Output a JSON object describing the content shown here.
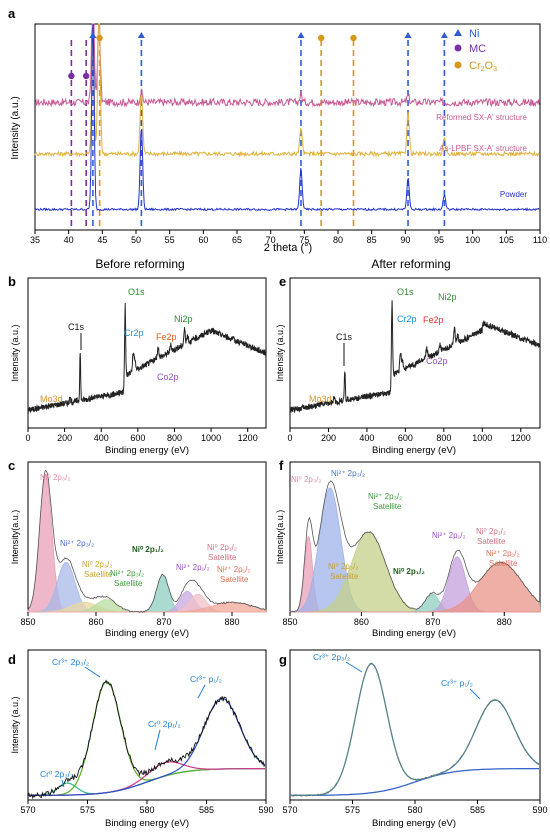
{
  "chart_data": [
    {
      "panel": "a",
      "type": "line",
      "xlabel": "2 theta (°)",
      "ylabel": "Intensity (a.u.)",
      "xlim": [
        35,
        110
      ],
      "xticks": [
        35,
        40,
        45,
        50,
        55,
        60,
        65,
        70,
        75,
        80,
        85,
        90,
        95,
        100,
        105,
        110
      ],
      "legend": [
        {
          "label": "Ni",
          "marker": "triangle",
          "color": "#2f5bd6"
        },
        {
          "label": "MC",
          "marker": "circle",
          "color": "#7b2fa6"
        },
        {
          "label": "Cr2O3",
          "marker": "circle",
          "color": "#d9961d"
        }
      ],
      "markers": {
        "Ni": [
          43.6,
          50.8,
          74.5,
          90.4,
          95.8
        ],
        "MC": [
          40.4,
          42.6
        ],
        "Cr2O3": [
          44.6,
          77.5,
          82.3
        ]
      },
      "series": [
        {
          "name": "Reformed SX-A' structure",
          "color": "#c85a93",
          "baseline": 0.62,
          "peaks": [
            [
              43.6,
              0.6
            ],
            [
              44.5,
              0.45
            ],
            [
              50.8,
              0.05
            ],
            [
              74.5,
              0.04
            ],
            [
              90.4,
              0.03
            ]
          ]
        },
        {
          "name": "As-LPBF SX-A' structure",
          "color": "#e0b23c",
          "baseline": 0.37,
          "peaks": [
            [
              43.6,
              0.55
            ],
            [
              44.5,
              0.75
            ],
            [
              50.8,
              0.3
            ],
            [
              74.5,
              0.12
            ],
            [
              90.4,
              0.2
            ],
            [
              95.8,
              0.07
            ]
          ]
        },
        {
          "name": "Powder",
          "color": "#2233cc",
          "baseline": 0.1,
          "peaks": [
            [
              43.6,
              0.92
            ],
            [
              50.8,
              0.4
            ],
            [
              74.5,
              0.2
            ],
            [
              90.4,
              0.15
            ],
            [
              95.8,
              0.07
            ]
          ]
        }
      ]
    },
    {
      "panel": "b",
      "title": "Before reforming",
      "type": "line",
      "xlabel": "Binding energy (eV)",
      "ylabel": "Intensity (a.u.)",
      "xlim": [
        0,
        1300
      ],
      "xticks": [
        0,
        200,
        400,
        600,
        800,
        1000,
        1200
      ],
      "annotations": [
        {
          "text": "O1s",
          "x": 530,
          "color": "#2e8b2e"
        },
        {
          "text": "C1s",
          "x": 285,
          "color": "#111111"
        },
        {
          "text": "Cr2p",
          "x": 575,
          "color": "#1f8fd6"
        },
        {
          "text": "Ni2p",
          "x": 855,
          "color": "#2e8b2e"
        },
        {
          "text": "Fe2p",
          "x": 711,
          "color": "#e05a1a"
        },
        {
          "text": "Co2p",
          "x": 780,
          "color": "#9b4fc4"
        },
        {
          "text": "Mo3d",
          "x": 230,
          "color": "#e0902a"
        }
      ]
    },
    {
      "panel": "e",
      "title": "After reforming",
      "type": "line",
      "xlabel": "Binding energy (eV)",
      "ylabel": "Intensity (a.u.)",
      "xlim": [
        0,
        1300
      ],
      "xticks": [
        0,
        200,
        400,
        600,
        800,
        1000,
        1200
      ],
      "annotations": [
        {
          "text": "O1s",
          "x": 530,
          "color": "#2e8b2e"
        },
        {
          "text": "C1s",
          "x": 285,
          "color": "#111111"
        },
        {
          "text": "Cr2p",
          "x": 575,
          "color": "#1f8fd6"
        },
        {
          "text": "Ni2p",
          "x": 855,
          "color": "#2e8b2e"
        },
        {
          "text": "Fe2p",
          "x": 711,
          "color": "#e0302a"
        },
        {
          "text": "Co2p",
          "x": 780,
          "color": "#9b4fc4"
        },
        {
          "text": "Mo3d",
          "x": 230,
          "color": "#e0902a"
        }
      ]
    },
    {
      "panel": "c",
      "type": "area",
      "xlabel": "Binding energy (eV)",
      "ylabel": "Intensity(a.u.)",
      "xlim": [
        850,
        885
      ],
      "xticks": [
        850,
        860,
        870,
        880
      ],
      "components": [
        {
          "center": 852.6,
          "height": 1.0,
          "width": 0.9,
          "color": "#e8a0b8"
        },
        {
          "center": 855.6,
          "height": 0.36,
          "width": 1.3,
          "color": "#a8b8e8"
        },
        {
          "center": 858.3,
          "height": 0.07,
          "width": 2.0,
          "color": "#e8d8a0"
        },
        {
          "center": 861.5,
          "height": 0.09,
          "width": 1.5,
          "color": "#b8dca0"
        },
        {
          "center": 869.8,
          "height": 0.27,
          "width": 0.9,
          "color": "#8fcfc0"
        },
        {
          "center": 873.4,
          "height": 0.15,
          "width": 1.1,
          "color": "#c8a8e0"
        },
        {
          "center": 875.0,
          "height": 0.13,
          "width": 1.2,
          "color": "#f0c0c8"
        },
        {
          "center": 880.0,
          "height": 0.07,
          "width": 3.0,
          "color": "#f0a898"
        }
      ]
    },
    {
      "panel": "f",
      "type": "area",
      "xlabel": "Binding energy (eV)",
      "ylabel": "Intensity(a.u.)",
      "xlim": [
        850,
        885
      ],
      "xticks": [
        850,
        860,
        870,
        880
      ],
      "components": [
        {
          "center": 852.6,
          "height": 0.55,
          "width": 0.55,
          "color": "#e8a0b8"
        },
        {
          "center": 855.6,
          "height": 0.9,
          "width": 1.5,
          "color": "#9fb3e8"
        },
        {
          "center": 861.0,
          "height": 0.58,
          "width": 2.4,
          "color": "#c4d08a"
        },
        {
          "center": 869.9,
          "height": 0.13,
          "width": 1.0,
          "color": "#8fcfc0"
        },
        {
          "center": 873.4,
          "height": 0.4,
          "width": 1.2,
          "color": "#c4a0dc"
        },
        {
          "center": 879.5,
          "height": 0.36,
          "width": 3.0,
          "color": "#e8948a"
        }
      ]
    },
    {
      "panel": "d",
      "type": "line",
      "xlabel": "Binding energy (eV)",
      "ylabel": "Intensity (a.u.)",
      "xlim": [
        570,
        590
      ],
      "xticks": [
        570,
        575,
        580,
        585,
        590
      ],
      "components": [
        {
          "center": 573.3,
          "height": 0.08,
          "width": 0.8,
          "color": "#2fb88f"
        },
        {
          "center": 576.6,
          "height": 0.74,
          "width": 1.2,
          "color": "#5ab02a"
        },
        {
          "center": 581.5,
          "height": 0.09,
          "width": 1.4,
          "color": "#cc3a8c"
        },
        {
          "center": 586.3,
          "height": 0.47,
          "width": 1.5,
          "color": "#2a50c8"
        }
      ]
    },
    {
      "panel": "g",
      "type": "line",
      "xlabel": "Binding energy (eV)",
      "ylabel": "",
      "xlim": [
        570,
        590
      ],
      "xticks": [
        570,
        575,
        580,
        585,
        590
      ],
      "components": [
        {
          "center": 576.5,
          "height": 0.86,
          "width": 1.25
        },
        {
          "center": 586.4,
          "height": 0.46,
          "width": 1.5
        }
      ]
    }
  ],
  "labels": {
    "a": {
      "panel_letter": "a",
      "ylabel": "Intensity (a.u.)",
      "xlabel": "2 theta (°)",
      "legend_ni": "Ni",
      "legend_mc": "MC",
      "legend_cr": "Cr",
      "legend_cr_sub1": "2",
      "legend_cr_o": "O",
      "legend_cr_sub2": "3",
      "series_reformed": "Reformed SX-A' structure",
      "series_aslpbf": "As-LPBF SX-A' structure",
      "series_powder": "Powder"
    },
    "headers": {
      "before": "Before reforming",
      "after": "After reforming"
    },
    "b": {
      "panel_letter": "b",
      "ylabel": "Intensity (a.u.)",
      "xlabel": "Binding energy (eV)",
      "o1s": "O1s",
      "c1s": "C1s",
      "cr2p": "Cr2p",
      "ni2p": "Ni2p",
      "fe2p": "Fe2p",
      "co2p": "Co2p",
      "mo3d": "Mo3d"
    },
    "e": {
      "panel_letter": "e",
      "ylabel": "Intensity (a.u.)",
      "xlabel": "Binding energy (eV)",
      "o1s": "O1s",
      "c1s": "C1s",
      "cr2p": "Cr2p",
      "ni2p": "Ni2p",
      "fe2p": "Fe2p",
      "co2p": "Co2p",
      "mo3d": "Mo3d"
    },
    "c": {
      "panel_letter": "c",
      "ylabel": "Intensity(a.u.)",
      "xlabel": "Binding energy (eV)",
      "ni0_2p32": "Ni⁰ 2p₃/₂",
      "ni2_2p32": "Ni²⁺ 2p₃/₂",
      "ni0_2p32_sat_1": "Ni⁰ 2p₃/₂",
      "ni0_2p32_sat_2": "Satellite",
      "ni2_2p32_sat_1": "Ni²⁺ 2p₃/₂",
      "ni2_2p32_sat_2": "Satellite",
      "ni0_2p12": "Ni⁰ 2p₁/₂",
      "ni2_2p12": "Ni²⁺ 2p₁/₂",
      "ni0_2p12_sat_1": "Ni⁰ 2p₁/₂",
      "ni0_2p12_sat_2": "Satellite",
      "ni2_2p12_sat_1": "Ni²⁺ 2p₁/₂",
      "ni2_2p12_sat_2": "Satellite"
    },
    "f": {
      "panel_letter": "f",
      "ylabel": "Intensity(a.u.)",
      "xlabel": "Binding energy (eV)",
      "ni0_2p32": "Ni⁰ 2p₃/₂",
      "ni2_2p32": "Ni²⁺ 2p₃/₂",
      "ni2_2p32_sat_1": "Ni²⁺ 2p₃/₂",
      "ni2_2p32_sat_2": "Satellite",
      "ni0_2p32_sat_1": "Ni⁰ 2p₃/₂",
      "ni0_2p32_sat_2": "Satellite",
      "ni0_2p12": "Ni⁰ 2p₁/₂",
      "ni2_2p12": "Ni²⁺ 2p₁/₂",
      "ni0_2p12_sat_1": "Ni⁰ 2p₁/₂",
      "ni0_2p12_sat_2": "Satellite",
      "ni2_2p12_sat_1": "Ni²⁺ 2p₁/₂",
      "ni2_2p12_sat_2": "Satellite"
    },
    "d": {
      "panel_letter": "d",
      "ylabel": "Intensity (a.u.)",
      "xlabel": "Binding energy (eV)",
      "cr3_2p32": "Cr³⁺ 2p₃/₂",
      "cr3_p12": "Cr³⁺ p₁/₂",
      "cr0_2p12": "Cr⁰ 2p₁/₂",
      "cr0_2p32": "Cr⁰ 2p₃/₂"
    },
    "g": {
      "panel_letter": "g",
      "xlabel": "Binding energy (eV)",
      "cr3_2p32": "Cr³⁺ 2p₃/₂",
      "cr3_p12": "Cr³⁺ p₁/₂"
    }
  }
}
